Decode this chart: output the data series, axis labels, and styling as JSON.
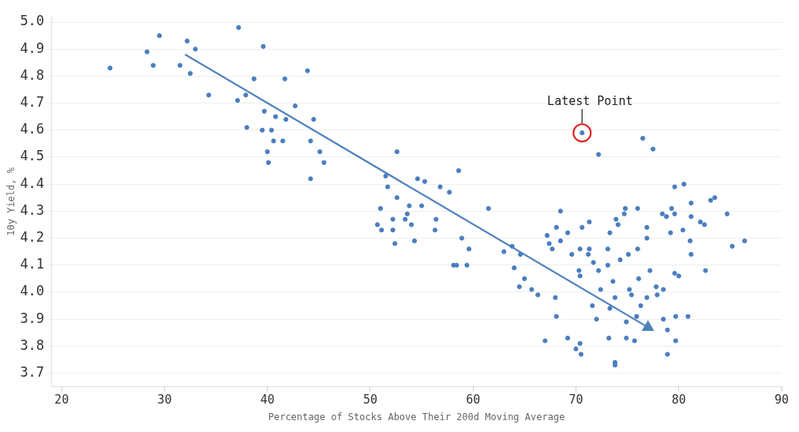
{
  "chart_data": {
    "type": "scatter",
    "xlabel": "Percentage of Stocks Above Their 200d Moving Average",
    "ylabel": "10y Yield, %",
    "xlim": [
      19,
      90
    ],
    "xticks": [
      20,
      30,
      40,
      50,
      60,
      70,
      80,
      90
    ],
    "ylim": [
      3.65,
      5.02
    ],
    "yticks": [
      {
        "value": 3.7,
        "label": "3.7"
      },
      {
        "value": 3.8,
        "label": "3.8"
      },
      {
        "value": 3.9,
        "label": "3.9"
      },
      {
        "value": 4.0,
        "label": "4.0"
      },
      {
        "value": 4.1,
        "label": "4.1"
      },
      {
        "value": 4.2,
        "label": "4.2"
      },
      {
        "value": 4.3,
        "label": "4.3"
      },
      {
        "value": 4.4,
        "label": "4.4"
      },
      {
        "value": 4.5,
        "label": "4.5"
      },
      {
        "value": 4.6,
        "label": "4.6"
      },
      {
        "value": 4.7,
        "label": "4.7"
      },
      {
        "value": 4.8,
        "label": "4.8"
      },
      {
        "value": 4.9,
        "label": "4.9"
      },
      {
        "value": 5.0,
        "label": "5.0"
      }
    ],
    "grid": "y",
    "annotations": [
      {
        "text": "Latest Point",
        "x": 70.6,
        "y": 4.59
      }
    ],
    "series": [
      {
        "type": "scatter",
        "color": "#4a7ebf",
        "marker": "circle",
        "x": [
          24.7,
          28.3,
          28.9,
          29.5,
          31.5,
          32.2,
          32.5,
          33.0,
          34.3,
          37.2,
          37.1,
          37.9,
          38.7,
          38.0,
          39.5,
          39.6,
          39.7,
          40.4,
          40.8,
          40.0,
          40.1,
          40.6,
          41.5,
          41.7,
          41.8,
          42.7,
          43.9,
          44.2,
          44.5,
          45.1,
          45.5,
          44.2,
          52.6,
          51.7,
          51.5,
          52.6,
          51.0,
          50.7,
          51.1,
          52.2,
          52.2,
          52.4,
          53.4,
          53.8,
          53.6,
          54.0,
          54.3,
          54.6,
          55.3,
          55.0,
          56.4,
          56.3,
          56.8,
          57.7,
          58.6,
          58.9,
          59.6,
          58.1,
          58.4,
          59.4,
          61.5,
          63.0,
          63.8,
          64.6,
          64.0,
          65.0,
          64.5,
          65.7,
          66.3,
          68.0,
          68.1,
          67.0,
          68.5,
          68.1,
          67.2,
          67.4,
          67.7,
          68.5,
          70.6,
          76.5,
          77.5,
          72.2,
          79.6,
          80.5,
          81.2,
          83.1,
          83.5,
          84.7,
          85.2,
          86.4,
          82.6,
          81.2,
          82.1,
          82.5,
          78.4,
          78.8,
          79.3,
          79.6,
          80.4,
          79.2,
          81.1,
          81.2,
          79.6,
          80.0,
          76.0,
          74.8,
          74.7,
          73.9,
          74.1,
          73.3,
          76.9,
          76.9,
          76.0,
          75.1,
          74.3,
          73.1,
          73.1,
          71.3,
          70.6,
          69.2,
          70.4,
          71.3,
          71.2,
          69.6,
          71.7,
          72.2,
          70.3,
          70.4,
          73.6,
          76.1,
          77.2,
          75.2,
          75.4,
          77.8,
          77.9,
          78.5,
          72.4,
          73.8,
          76.9,
          71.6,
          76.3,
          73.3,
          72.0,
          74.9,
          75.9,
          78.5,
          79.7,
          80.9,
          78.9,
          79.7,
          78.9,
          73.2,
          74.9,
          75.7,
          69.2,
          70.4,
          70.0,
          70.5,
          73.8,
          73.8
        ],
        "values": [
          4.83,
          4.89,
          4.84,
          4.95,
          4.84,
          4.93,
          4.81,
          4.9,
          4.73,
          4.98,
          4.71,
          4.73,
          4.79,
          4.61,
          4.6,
          4.91,
          4.67,
          4.6,
          4.65,
          4.52,
          4.48,
          4.56,
          4.56,
          4.79,
          4.64,
          4.69,
          4.82,
          4.56,
          4.64,
          4.52,
          4.48,
          4.42,
          4.52,
          4.39,
          4.43,
          4.35,
          4.31,
          4.25,
          4.23,
          4.27,
          4.23,
          4.18,
          4.27,
          4.32,
          4.29,
          4.25,
          4.19,
          4.42,
          4.41,
          4.32,
          4.27,
          4.23,
          4.39,
          4.37,
          4.45,
          4.2,
          4.16,
          4.1,
          4.1,
          4.1,
          4.31,
          4.15,
          4.17,
          4.14,
          4.09,
          4.05,
          4.02,
          4.01,
          3.99,
          3.98,
          3.91,
          3.82,
          4.3,
          4.24,
          4.21,
          4.18,
          4.16,
          4.19,
          4.59,
          4.57,
          4.53,
          4.51,
          4.39,
          4.4,
          4.33,
          4.34,
          4.35,
          4.29,
          4.17,
          4.19,
          4.08,
          4.28,
          4.26,
          4.25,
          4.29,
          4.28,
          4.31,
          4.29,
          4.23,
          4.22,
          4.19,
          4.14,
          4.07,
          4.06,
          4.31,
          4.31,
          4.29,
          4.27,
          4.25,
          4.22,
          4.24,
          4.2,
          4.16,
          4.14,
          4.12,
          4.16,
          4.1,
          4.26,
          4.24,
          4.22,
          4.16,
          4.16,
          4.14,
          4.14,
          4.11,
          4.08,
          4.08,
          4.06,
          4.04,
          4.05,
          4.08,
          4.01,
          3.99,
          4.02,
          3.99,
          4.01,
          4.01,
          3.98,
          3.98,
          3.95,
          3.95,
          3.94,
          3.9,
          3.89,
          3.91,
          3.9,
          3.91,
          3.91,
          3.86,
          3.82,
          3.77,
          3.83,
          3.83,
          3.82,
          3.83,
          3.81,
          3.79,
          3.77,
          3.74,
          3.73
        ]
      },
      {
        "type": "line",
        "color": "#4f81bd",
        "marker": "triangle",
        "x": [
          32,
          77
        ],
        "values": [
          4.88,
          3.87
        ]
      }
    ]
  }
}
